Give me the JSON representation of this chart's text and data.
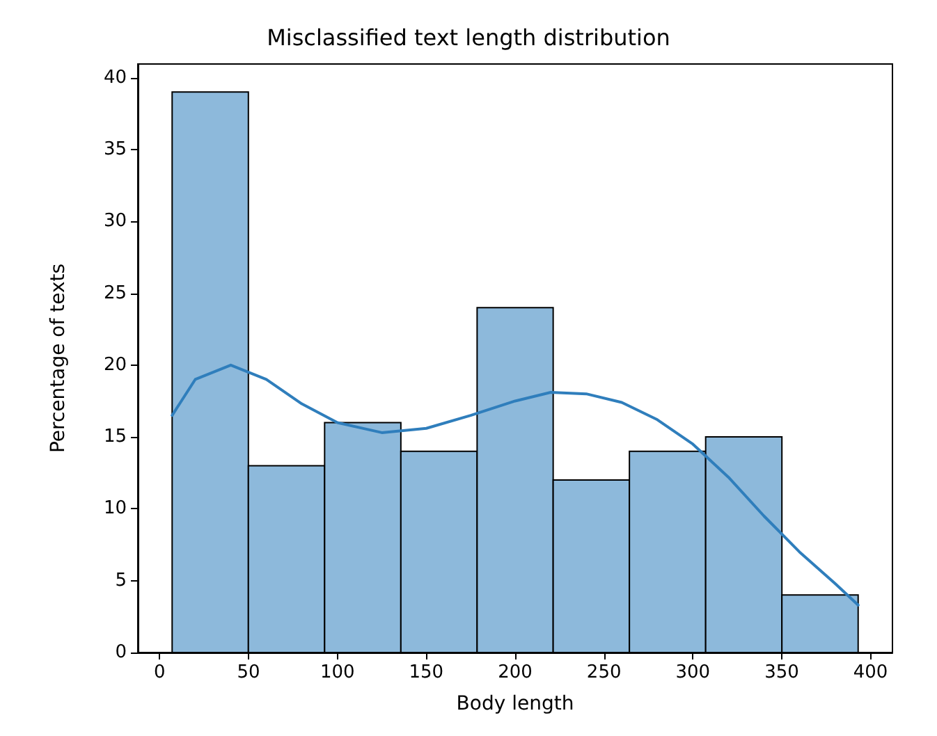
{
  "chart_data": {
    "type": "histogram",
    "title": "Misclassified text length distribution",
    "xlabel": "Body length",
    "ylabel": "Percentage of texts",
    "bins": [
      7,
      49.9,
      92.8,
      135.7,
      178.6,
      221.4,
      264.3,
      307.2,
      350.1,
      393
    ],
    "values": [
      39,
      13,
      16,
      14,
      24,
      12,
      14,
      15,
      4
    ],
    "color": "#8db9db",
    "series": [
      {
        "type": "line",
        "color": "#2f7ebc",
        "x": [
          7,
          20,
          40,
          60,
          80,
          100,
          125,
          150,
          175,
          200,
          220,
          240,
          260,
          280,
          300,
          320,
          340,
          360,
          380,
          393
        ],
        "values": [
          16.5,
          19,
          20,
          19,
          17.3,
          16,
          15.3,
          15.6,
          16.5,
          17.5,
          18.1,
          18,
          17.4,
          16.2,
          14.5,
          12.2,
          9.5,
          7,
          4.8,
          3.3
        ]
      }
    ],
    "xlim": [
      -12.3,
      412.3
    ],
    "ylim": [
      0,
      40.95
    ],
    "xticks": [
      0,
      50,
      100,
      150,
      200,
      250,
      300,
      350,
      400
    ],
    "yticks": [
      0,
      5,
      10,
      15,
      20,
      25,
      30,
      35,
      40
    ],
    "grid": false,
    "marker": "none",
    "line_style": "solid"
  }
}
